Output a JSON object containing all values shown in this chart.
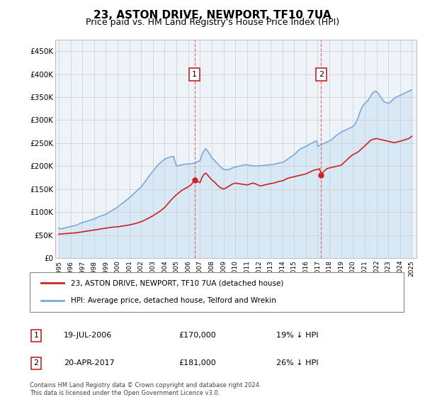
{
  "title": "23, ASTON DRIVE, NEWPORT, TF10 7UA",
  "subtitle": "Price paid vs. HM Land Registry's House Price Index (HPI)",
  "title_fontsize": 11,
  "subtitle_fontsize": 9,
  "ylim": [
    0,
    475000
  ],
  "yticks": [
    0,
    50000,
    100000,
    150000,
    200000,
    250000,
    300000,
    350000,
    400000,
    450000
  ],
  "ytick_labels": [
    "£0",
    "£50K",
    "£100K",
    "£150K",
    "£200K",
    "£250K",
    "£300K",
    "£350K",
    "£400K",
    "£450K"
  ],
  "xlim_start": 1994.7,
  "xlim_end": 2025.4,
  "sale1_x": 2006.54,
  "sale1_y": 170000,
  "sale2_x": 2017.3,
  "sale2_y": 181000,
  "sale1_label": "19-JUL-2006",
  "sale2_label": "20-APR-2017",
  "sale1_price": "£170,000",
  "sale2_price": "£181,000",
  "sale1_hpi": "19% ↓ HPI",
  "sale2_hpi": "26% ↓ HPI",
  "hpi_line_color": "#7aaadd",
  "hpi_fill_color": "#d8e8f5",
  "price_line_color": "#cc2222",
  "marker_color": "#cc2222",
  "vline_color": "#dd6666",
  "box_edge_color": "#cc2222",
  "legend_line1": "23, ASTON DRIVE, NEWPORT, TF10 7UA (detached house)",
  "legend_line2": "HPI: Average price, detached house, Telford and Wrekin",
  "footer1": "Contains HM Land Registry data © Crown copyright and database right 2024.",
  "footer2": "This data is licensed under the Open Government Licence v3.0.",
  "plot_bg_color": "#eef3fa",
  "grid_color": "#cccccc",
  "hpi_x": [
    1995.0,
    1995.08,
    1995.17,
    1995.25,
    1995.33,
    1995.42,
    1995.5,
    1995.58,
    1995.67,
    1995.75,
    1995.83,
    1995.92,
    1996.0,
    1996.08,
    1996.17,
    1996.25,
    1996.33,
    1996.42,
    1996.5,
    1996.58,
    1996.67,
    1996.75,
    1996.83,
    1996.92,
    1997.0,
    1997.25,
    1997.5,
    1997.75,
    1998.0,
    1998.25,
    1998.5,
    1998.75,
    1999.0,
    1999.25,
    1999.5,
    1999.75,
    2000.0,
    2000.25,
    2000.5,
    2000.75,
    2001.0,
    2001.25,
    2001.5,
    2001.75,
    2002.0,
    2002.25,
    2002.5,
    2002.75,
    2003.0,
    2003.25,
    2003.5,
    2003.75,
    2004.0,
    2004.25,
    2004.5,
    2004.75,
    2005.0,
    2005.08,
    2005.17,
    2005.25,
    2005.33,
    2005.42,
    2005.5,
    2005.58,
    2005.67,
    2005.75,
    2005.83,
    2005.92,
    2006.0,
    2006.08,
    2006.17,
    2006.25,
    2006.33,
    2006.42,
    2006.5,
    2006.58,
    2006.67,
    2006.75,
    2006.83,
    2006.92,
    2007.0,
    2007.08,
    2007.17,
    2007.25,
    2007.33,
    2007.42,
    2007.5,
    2007.58,
    2007.67,
    2007.75,
    2007.83,
    2007.92,
    2008.0,
    2008.25,
    2008.5,
    2008.75,
    2009.0,
    2009.25,
    2009.5,
    2009.75,
    2010.0,
    2010.08,
    2010.17,
    2010.25,
    2010.33,
    2010.42,
    2010.5,
    2010.58,
    2010.67,
    2010.75,
    2010.83,
    2010.92,
    2011.0,
    2011.08,
    2011.17,
    2011.25,
    2011.33,
    2011.42,
    2011.5,
    2011.58,
    2011.67,
    2011.75,
    2011.83,
    2011.92,
    2012.0,
    2012.08,
    2012.17,
    2012.25,
    2012.33,
    2012.42,
    2012.5,
    2012.58,
    2012.67,
    2012.75,
    2012.83,
    2012.92,
    2013.0,
    2013.25,
    2013.5,
    2013.75,
    2014.0,
    2014.08,
    2014.17,
    2014.25,
    2014.33,
    2014.42,
    2014.5,
    2014.58,
    2014.67,
    2014.75,
    2014.83,
    2014.92,
    2015.0,
    2015.08,
    2015.17,
    2015.25,
    2015.33,
    2015.42,
    2015.5,
    2015.58,
    2015.67,
    2015.75,
    2015.83,
    2015.92,
    2016.0,
    2016.08,
    2016.17,
    2016.25,
    2016.33,
    2016.42,
    2016.5,
    2016.58,
    2016.67,
    2016.75,
    2016.83,
    2016.92,
    2017.0,
    2017.08,
    2017.17,
    2017.25,
    2017.33,
    2017.42,
    2017.5,
    2017.58,
    2017.67,
    2017.75,
    2017.83,
    2017.92,
    2018.0,
    2018.08,
    2018.17,
    2018.25,
    2018.33,
    2018.42,
    2018.5,
    2018.58,
    2018.67,
    2018.75,
    2018.83,
    2018.92,
    2019.0,
    2019.08,
    2019.17,
    2019.25,
    2019.33,
    2019.42,
    2019.5,
    2019.58,
    2019.67,
    2019.75,
    2019.83,
    2019.92,
    2020.0,
    2020.08,
    2020.17,
    2020.25,
    2020.33,
    2020.42,
    2020.5,
    2020.58,
    2020.67,
    2020.75,
    2020.83,
    2020.92,
    2021.0,
    2021.08,
    2021.17,
    2021.25,
    2021.33,
    2021.42,
    2021.5,
    2021.58,
    2021.67,
    2021.75,
    2021.83,
    2021.92,
    2022.0,
    2022.08,
    2022.17,
    2022.25,
    2022.33,
    2022.42,
    2022.5,
    2022.58,
    2022.67,
    2022.75,
    2022.83,
    2022.92,
    2023.0,
    2023.08,
    2023.17,
    2023.25,
    2023.33,
    2023.42,
    2023.5,
    2023.58,
    2023.67,
    2023.75,
    2023.83,
    2023.92,
    2024.0,
    2024.08,
    2024.17,
    2024.25,
    2024.33,
    2024.42,
    2024.5,
    2024.58,
    2024.67,
    2024.75,
    2024.83,
    2024.92,
    2025.0
  ],
  "hpi_y": [
    65000,
    64000,
    63500,
    64000,
    64500,
    65000,
    65500,
    66000,
    66500,
    67000,
    67500,
    68000,
    68500,
    69000,
    69500,
    70000,
    70500,
    71000,
    71500,
    72500,
    73500,
    74500,
    75500,
    76500,
    77000,
    79000,
    81000,
    83000,
    85000,
    88000,
    91000,
    93000,
    95000,
    99000,
    103000,
    107000,
    111000,
    116000,
    121000,
    126000,
    131000,
    137000,
    143000,
    149000,
    155000,
    163000,
    172000,
    181000,
    189000,
    197000,
    204000,
    210000,
    215000,
    218000,
    220000,
    221000,
    200000,
    200500,
    201000,
    201500,
    202000,
    202500,
    203000,
    203500,
    204000,
    204500,
    204500,
    204500,
    204500,
    204800,
    205100,
    205400,
    205700,
    206000,
    206300,
    207000,
    208000,
    209000,
    210000,
    211000,
    212000,
    218000,
    224000,
    229000,
    233000,
    236000,
    238000,
    235000,
    232000,
    229000,
    226000,
    222000,
    218000,
    212000,
    205000,
    198000,
    193000,
    192000,
    193000,
    196000,
    198000,
    198500,
    199000,
    199500,
    200000,
    200500,
    201000,
    201500,
    202000,
    202500,
    203000,
    203000,
    203000,
    202500,
    202000,
    201500,
    201000,
    200800,
    200600,
    200400,
    200200,
    200000,
    200200,
    200400,
    200600,
    200700,
    200800,
    201000,
    201200,
    201400,
    201600,
    201800,
    202000,
    202200,
    202400,
    202600,
    203000,
    204000,
    205500,
    207000,
    208000,
    209000,
    210000,
    211500,
    213000,
    214500,
    216000,
    217500,
    219000,
    220500,
    222000,
    223500,
    225000,
    227000,
    229000,
    231000,
    233000,
    235000,
    237000,
    238000,
    239000,
    240000,
    241000,
    242000,
    243000,
    244000,
    245000,
    246500,
    248000,
    249000,
    250000,
    251000,
    252000,
    253000,
    254000,
    255000,
    243000,
    244000,
    245000,
    246000,
    247000,
    248000,
    249000,
    250000,
    251000,
    252000,
    253000,
    254000,
    255000,
    256000,
    257500,
    259000,
    261000,
    263000,
    265000,
    266500,
    268000,
    269500,
    271000,
    272500,
    274000,
    275000,
    276000,
    277000,
    278000,
    279000,
    280000,
    281000,
    282000,
    283000,
    284000,
    285000,
    286000,
    288000,
    291000,
    295000,
    299000,
    304000,
    310000,
    316000,
    322000,
    327000,
    331000,
    334000,
    336000,
    338000,
    340000,
    342000,
    345000,
    348000,
    352000,
    356000,
    359000,
    361000,
    362000,
    363000,
    362000,
    360000,
    357000,
    354000,
    351000,
    348000,
    345000,
    342000,
    340000,
    339000,
    338000,
    337000,
    337000,
    338000,
    339000,
    341000,
    343000,
    345000,
    347000,
    349000,
    350000,
    351000,
    352000,
    353000,
    354000,
    355000,
    356000,
    357000,
    358000,
    359000,
    360000,
    361000,
    362000,
    363000,
    364000,
    365000,
    366000
  ],
  "price_x": [
    1995.0,
    1995.5,
    1996.0,
    1996.5,
    1997.0,
    1997.5,
    1998.0,
    1998.5,
    1999.0,
    1999.5,
    2000.0,
    2000.5,
    2001.0,
    2001.5,
    2002.0,
    2002.5,
    2003.0,
    2003.5,
    2004.0,
    2004.5,
    2005.0,
    2005.5,
    2006.0,
    2006.17,
    2006.33,
    2006.54,
    2006.67,
    2006.83,
    2007.0,
    2007.17,
    2007.33,
    2007.5,
    2007.67,
    2007.83,
    2008.0,
    2008.25,
    2008.5,
    2008.75,
    2009.0,
    2009.25,
    2009.5,
    2009.75,
    2010.0,
    2010.25,
    2010.5,
    2010.75,
    2011.0,
    2011.17,
    2011.33,
    2011.5,
    2011.67,
    2011.83,
    2012.0,
    2012.17,
    2012.33,
    2012.5,
    2012.67,
    2012.83,
    2013.0,
    2013.25,
    2013.5,
    2013.75,
    2014.0,
    2014.17,
    2014.33,
    2014.5,
    2014.67,
    2014.83,
    2015.0,
    2015.17,
    2015.33,
    2015.5,
    2015.67,
    2015.83,
    2016.0,
    2016.17,
    2016.33,
    2016.5,
    2016.67,
    2016.83,
    2017.0,
    2017.17,
    2017.3,
    2017.5,
    2017.67,
    2017.83,
    2018.0,
    2018.17,
    2018.33,
    2018.5,
    2018.67,
    2018.83,
    2019.0,
    2019.25,
    2019.5,
    2019.75,
    2020.0,
    2020.25,
    2020.5,
    2020.75,
    2021.0,
    2021.17,
    2021.33,
    2021.5,
    2021.67,
    2021.83,
    2022.0,
    2022.17,
    2022.33,
    2022.5,
    2022.67,
    2022.83,
    2023.0,
    2023.17,
    2023.33,
    2023.5,
    2023.67,
    2023.83,
    2024.0,
    2024.25,
    2024.5,
    2024.75,
    2025.0
  ],
  "price_y": [
    52000,
    53000,
    54000,
    55000,
    57000,
    59000,
    61000,
    63000,
    65000,
    67000,
    68000,
    70000,
    72000,
    75000,
    79000,
    85000,
    92000,
    100000,
    110000,
    125000,
    138000,
    148000,
    155000,
    158000,
    162000,
    170000,
    168000,
    166000,
    164000,
    175000,
    182000,
    185000,
    180000,
    175000,
    170000,
    165000,
    158000,
    153000,
    150000,
    153000,
    157000,
    161000,
    163000,
    162000,
    161000,
    160000,
    159000,
    160000,
    162000,
    163000,
    162000,
    160000,
    158000,
    157000,
    158000,
    159000,
    160000,
    161000,
    162000,
    163000,
    165000,
    167000,
    168000,
    170000,
    172000,
    174000,
    175000,
    176000,
    177000,
    178000,
    179000,
    180000,
    181000,
    182000,
    183000,
    185000,
    187000,
    189000,
    191000,
    192000,
    193000,
    194000,
    181000,
    188000,
    192000,
    195000,
    196000,
    197000,
    198000,
    199000,
    200000,
    201000,
    202000,
    208000,
    214000,
    220000,
    225000,
    228000,
    232000,
    238000,
    244000,
    248000,
    252000,
    256000,
    258000,
    259000,
    260000,
    259000,
    258000,
    257000,
    256000,
    255000,
    254000,
    253000,
    252000,
    251000,
    252000,
    253000,
    254000,
    256000,
    258000,
    260000,
    265000
  ]
}
